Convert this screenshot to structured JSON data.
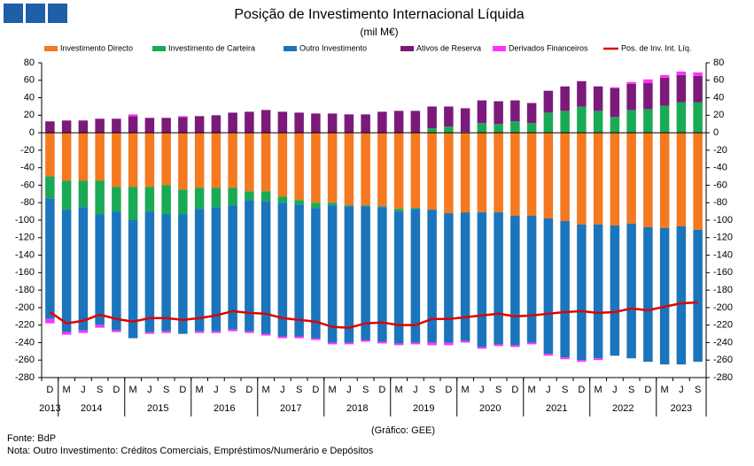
{
  "chart_data": {
    "type": "bar",
    "title": "Posição de Investimento Internacional Líquida",
    "subtitle": "(mil M€)",
    "source_note": "(Gráfico: GEE)",
    "source": "Fonte: BdP",
    "note": "Nota: Outro Investimento:  Créditos Comerciais, Empréstimos/Numerário  e Depósitos",
    "categories": [
      "D",
      "M",
      "J",
      "S",
      "D",
      "M",
      "J",
      "S",
      "D",
      "M",
      "J",
      "S",
      "D",
      "M",
      "J",
      "S",
      "D",
      "M",
      "J",
      "S",
      "D",
      "M",
      "J",
      "S",
      "D",
      "M",
      "J",
      "S",
      "D",
      "M",
      "J",
      "S",
      "D",
      "M",
      "J",
      "S",
      "D",
      "M",
      "J",
      "S"
    ],
    "years": [
      "2013",
      "2014",
      "2015",
      "2016",
      "2017",
      "2018",
      "2019",
      "2020",
      "2021",
      "2022",
      "2023"
    ],
    "ylim": [
      -280,
      80
    ],
    "yticks": [
      -280,
      -260,
      -240,
      -220,
      -200,
      -180,
      -160,
      -140,
      -120,
      -100,
      -80,
      -60,
      -40,
      -20,
      0,
      20,
      40,
      60,
      80
    ],
    "y2lim": [
      -280,
      80
    ],
    "y2ticks": [
      -280,
      -260,
      -240,
      -220,
      -200,
      -180,
      -160,
      -140,
      -120,
      -100,
      -80,
      -60,
      -40,
      -20,
      0,
      20,
      40,
      60,
      80
    ],
    "grid": false,
    "series": [
      {
        "name": "Investimento Directo",
        "color": "#f47920",
        "type": "bar",
        "values": [
          -50,
          -55,
          -55,
          -55,
          -62,
          -62,
          -62,
          -60,
          -65,
          -63,
          -63,
          -63,
          -67,
          -67,
          -73,
          -77,
          -80,
          -80,
          -83,
          -83,
          -84,
          -87,
          -86,
          -88,
          -92,
          -91,
          -91,
          -91,
          -95,
          -95,
          -98,
          -101,
          -105,
          -105,
          -106,
          -104,
          -108,
          -109,
          -107,
          -111
        ]
      },
      {
        "name": "Investimento de Carteira",
        "color": "#1aaa55",
        "type": "bar",
        "values": [
          -25,
          -33,
          -30,
          -38,
          -28,
          -38,
          -28,
          -33,
          -28,
          -24,
          -22,
          -20,
          -10,
          -11,
          -7,
          -5,
          -6,
          -3,
          -1,
          -1,
          -1,
          -3,
          -1,
          5,
          7,
          1,
          11,
          10,
          13,
          11,
          23,
          25,
          30,
          25,
          18,
          26,
          27,
          31,
          35,
          35
        ]
      },
      {
        "name": "Outro Investimento",
        "color": "#1a75bc",
        "type": "bar",
        "values": [
          -138,
          -140,
          -141,
          -127,
          -136,
          -135,
          -138,
          -134,
          -137,
          -140,
          -142,
          -142,
          -150,
          -152,
          -153,
          -151,
          -149,
          -157,
          -156,
          -153,
          -154,
          -151,
          -153,
          -152,
          -148,
          -147,
          -154,
          -151,
          -148,
          -145,
          -155,
          -156,
          -155,
          -153,
          -149,
          -154,
          -154,
          -156,
          -158,
          -151
        ]
      },
      {
        "name": "Ativos de Reserva",
        "color": "#7b1a7b",
        "type": "bar",
        "values": [
          13,
          14,
          14,
          16,
          16,
          19,
          17,
          17,
          18,
          19,
          20,
          23,
          24,
          26,
          24,
          23,
          22,
          22,
          21,
          21,
          24,
          25,
          25,
          25,
          23,
          27,
          26,
          26,
          24,
          23,
          25,
          28,
          29,
          28,
          33,
          30,
          30,
          32,
          31,
          30
        ]
      },
      {
        "name": "Derivados Financeiros",
        "color": "#ff33ff",
        "type": "bar",
        "values": [
          -5,
          -3,
          -3,
          -3,
          -2,
          2,
          -2,
          -2,
          1,
          -2,
          -2,
          -2,
          -2,
          -2,
          -2,
          -2,
          -2,
          -2,
          -2,
          -2,
          -2,
          -2,
          -2,
          -3,
          -3,
          -2,
          -2,
          -2,
          -2,
          -2,
          -2,
          -2,
          -2,
          -2,
          1,
          2,
          4,
          3,
          4,
          4
        ]
      },
      {
        "name": "Pos. de Inv. Int. Líq.",
        "color": "#e00000",
        "type": "line",
        "values": [
          -205,
          -218,
          -215,
          -208,
          -213,
          -216,
          -212,
          -212,
          -214,
          -212,
          -209,
          -204,
          -206,
          -207,
          -212,
          -214,
          -216,
          -222,
          -223,
          -218,
          -217,
          -220,
          -220,
          -213,
          -213,
          -211,
          -209,
          -207,
          -210,
          -209,
          -207,
          -205,
          -204,
          -206,
          -205,
          -201,
          -203,
          -199,
          -195,
          -194
        ]
      }
    ]
  }
}
